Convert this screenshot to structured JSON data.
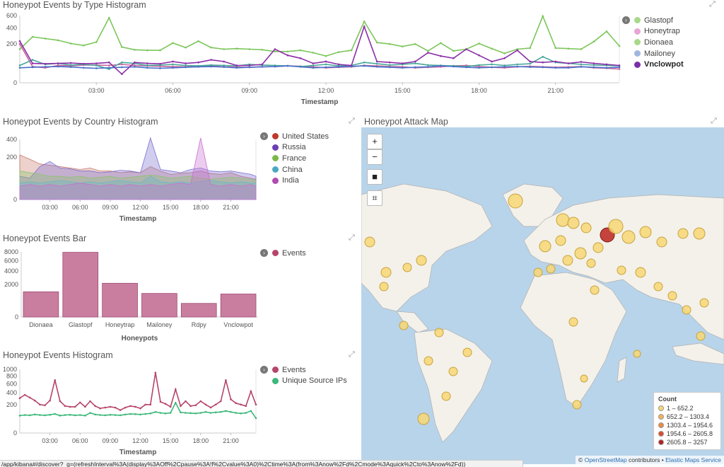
{
  "panels": {
    "type_hist": {
      "title": "Honeypot Events by Type Histogram",
      "legend": [
        {
          "label": "Glastopf",
          "color": "#a8d98a"
        },
        {
          "label": "Honeytrap",
          "color": "#e8a6d4"
        },
        {
          "label": "Dionaea",
          "color": "#a8d98a"
        },
        {
          "label": "Mailoney",
          "color": "#9fb6e0"
        },
        {
          "label": "Vnclowpot",
          "color": "#7b2fa8"
        }
      ]
    },
    "country_hist": {
      "title": "Honeypot Events by Country Histogram",
      "legend": [
        {
          "label": "United States",
          "color": "#c0392b"
        },
        {
          "label": "Russia",
          "color": "#6a3fb5"
        },
        {
          "label": "France",
          "color": "#7bb848"
        },
        {
          "label": "China",
          "color": "#4aa8c0"
        },
        {
          "label": "India",
          "color": "#b04bb0"
        }
      ]
    },
    "bar": {
      "title": "Honeypot Events Bar",
      "legend": [
        {
          "label": "Events",
          "color": "#b5456a"
        }
      ]
    },
    "events_hist": {
      "title": "Honeypot Events Histogram",
      "legend": [
        {
          "label": "Events",
          "color": "#b5456a"
        },
        {
          "label": "Unique Source IPs",
          "color": "#3cb87a"
        }
      ]
    },
    "map": {
      "title": "Honeypot Attack Map",
      "buttons": [
        "+",
        "−",
        "■",
        "⌗"
      ],
      "legend_title": "Count",
      "legend": [
        {
          "label": "1 – 652.2",
          "color": "#f7d774"
        },
        {
          "label": "652.2 – 1303.4",
          "color": "#f4b25a"
        },
        {
          "label": "1303.4 – 1954.6",
          "color": "#ef8a3c"
        },
        {
          "label": "1954.6 – 2605.8",
          "color": "#e04a2c"
        },
        {
          "label": "2605.8 – 3257",
          "color": "#b82020"
        }
      ],
      "attribution_prefix": "©",
      "attribution_osm": "OpenStreetMap",
      "attribution_mid": "contributors •",
      "attribution_ems": "Elastic Maps Service"
    }
  },
  "status_url": "/app/kibana#/discover?_g=(refreshInterval%3A(display%3AOff%2Cpause%3A!f%2Cvalue%3A0)%2Ctime%3A(from%3Anow%2Fd%2Cmode%3Aquick%2Cto%3Anow%2Fd))",
  "chart_data": [
    {
      "type": "line",
      "title": "Honeypot Events by Type Histogram",
      "xlabel": "Timestamp",
      "ylabel": "",
      "x_ticks": [
        "03:00",
        "06:00",
        "09:00",
        "12:00",
        "15:00",
        "18:00",
        "21:00"
      ],
      "y_ticks": [
        "0",
        "200",
        "400",
        "600"
      ],
      "y_scale": "sqrt",
      "xlim": [
        0,
        23.5
      ],
      "ylim": [
        0,
        600
      ],
      "x": [
        0,
        0.5,
        1,
        1.5,
        2,
        2.5,
        3,
        3.5,
        4,
        4.5,
        5,
        5.5,
        6,
        6.5,
        7,
        7.5,
        8,
        8.5,
        9,
        9.5,
        10,
        10.5,
        11,
        11.5,
        12,
        12.5,
        13,
        13.5,
        14,
        14.5,
        15,
        15.5,
        16,
        16.5,
        17,
        17.5,
        18,
        18.5,
        19,
        19.5,
        20,
        20.5,
        21,
        21.5,
        22,
        22.5,
        23,
        23.5
      ],
      "series": [
        {
          "name": "Glastopf",
          "values": [
            150,
            280,
            260,
            240,
            205,
            185,
            220,
            560,
            170,
            145,
            140,
            140,
            210,
            165,
            230,
            165,
            150,
            155,
            150,
            145,
            130,
            130,
            140,
            120,
            95,
            125,
            140,
            500,
            215,
            200,
            175,
            200,
            135,
            210,
            135,
            150,
            205,
            155,
            115,
            150,
            160,
            590,
            160,
            155,
            150,
            225,
            350,
            180
          ]
        },
        {
          "name": "Honeytrap",
          "values": [
            200,
            35,
            30,
            40,
            38,
            42,
            42,
            40,
            45,
            40,
            38,
            36,
            35,
            34,
            36,
            38,
            34,
            33,
            32,
            34,
            35,
            38,
            36,
            34,
            30,
            32,
            34,
            40,
            38,
            35,
            34,
            30,
            32,
            34,
            38,
            40,
            35,
            32,
            30,
            34,
            36,
            34,
            32,
            33,
            35,
            30,
            28,
            25
          ]
        },
        {
          "name": "Dionaea",
          "values": [
            40,
            70,
            45,
            50,
            42,
            45,
            40,
            25,
            55,
            50,
            40,
            42,
            45,
            40,
            38,
            42,
            40,
            38,
            45,
            42,
            40,
            38,
            35,
            40,
            45,
            38,
            40,
            55,
            48,
            42,
            45,
            50,
            42,
            40,
            38,
            35,
            42,
            45,
            40,
            45,
            48,
            90,
            55,
            50,
            45,
            42,
            40,
            38
          ]
        },
        {
          "name": "Mailoney",
          "values": [
            30,
            32,
            34,
            35,
            33,
            30,
            28,
            30,
            32,
            34,
            30,
            28,
            30,
            32,
            34,
            35,
            33,
            30,
            32,
            34,
            35,
            38,
            34,
            30,
            32,
            34,
            36,
            38,
            34,
            32,
            30,
            32,
            34,
            38,
            35,
            32,
            30,
            32,
            34,
            35,
            33,
            32,
            30,
            30,
            34,
            32,
            30,
            32
          ]
        },
        {
          "name": "Vnclowpot",
          "values": [
            230,
            50,
            48,
            50,
            52,
            48,
            50,
            55,
            10,
            55,
            50,
            48,
            60,
            50,
            55,
            70,
            60,
            40,
            40,
            45,
            150,
            100,
            80,
            50,
            60,
            45,
            40,
            420,
            60,
            55,
            50,
            60,
            120,
            95,
            80,
            150,
            100,
            60,
            80,
            140,
            60,
            55,
            60,
            50,
            58,
            50,
            45,
            40
          ]
        }
      ]
    },
    {
      "type": "area",
      "title": "Honeypot Events by Country Histogram",
      "xlabel": "Timestamp",
      "ylabel": "",
      "x_ticks": [
        "03:00",
        "06:00",
        "09:00",
        "12:00",
        "15:00",
        "18:00",
        "21:00"
      ],
      "y_ticks": [
        "0",
        "200",
        "400"
      ],
      "y_scale": "sqrt",
      "xlim": [
        0,
        23.5
      ],
      "ylim": [
        0,
        400
      ],
      "x": [
        0,
        1,
        2,
        3,
        4,
        5,
        6,
        7,
        8,
        9,
        10,
        11,
        12,
        13,
        14,
        15,
        16,
        17,
        18,
        19,
        20,
        21,
        22,
        23,
        23.5
      ],
      "series": [
        {
          "name": "United States",
          "values": [
            220,
            180,
            140,
            130,
            120,
            110,
            100,
            110,
            90,
            90,
            80,
            85,
            80,
            120,
            90,
            70,
            75,
            80,
            90,
            75,
            70,
            80,
            60,
            50,
            45
          ]
        },
        {
          "name": "Russia",
          "values": [
            60,
            50,
            120,
            160,
            110,
            105,
            90,
            90,
            80,
            85,
            95,
            90,
            80,
            420,
            100,
            90,
            80,
            100,
            110,
            90,
            85,
            90,
            80,
            70,
            60
          ]
        },
        {
          "name": "France",
          "values": [
            90,
            80,
            70,
            60,
            60,
            55,
            60,
            50,
            55,
            60,
            50,
            55,
            60,
            65,
            60,
            50,
            55,
            60,
            50,
            45,
            50,
            55,
            50,
            45,
            40
          ]
        },
        {
          "name": "China",
          "values": [
            30,
            35,
            30,
            35,
            40,
            35,
            30,
            35,
            30,
            35,
            40,
            35,
            30,
            60,
            35,
            30,
            35,
            30,
            35,
            40,
            35,
            30,
            35,
            30,
            30
          ]
        },
        {
          "name": "India",
          "values": [
            20,
            25,
            20,
            25,
            20,
            25,
            30,
            25,
            20,
            25,
            20,
            25,
            20,
            25,
            20,
            25,
            30,
            25,
            420,
            25,
            20,
            25,
            20,
            25,
            20
          ]
        }
      ]
    },
    {
      "type": "bar",
      "title": "Honeypot Events Bar",
      "xlabel": "Honeypots",
      "ylabel": "",
      "categories": [
        "Dionaea",
        "Glastopf",
        "Honeytrap",
        "Mailoney",
        "Rdpy",
        "Vnclowpot"
      ],
      "y_ticks": [
        "0",
        "2000",
        "4000",
        "6000",
        "8000"
      ],
      "y_scale": "sqrt",
      "ylim": [
        0,
        8000
      ],
      "series": [
        {
          "name": "Events",
          "values": [
            1200,
            7900,
            2150,
            1050,
            350,
            1000
          ]
        }
      ]
    },
    {
      "type": "line",
      "title": "Honeypot Events Histogram",
      "xlabel": "Timestamp",
      "ylabel": "",
      "x_ticks": [
        "03:00",
        "06:00",
        "09:00",
        "12:00",
        "15:00",
        "18:00",
        "21:00"
      ],
      "y_ticks": [
        "0",
        "200",
        "400",
        "600",
        "800",
        "1000"
      ],
      "y_scale": "sqrt",
      "xlim": [
        0,
        23.5
      ],
      "ylim": [
        0,
        1000
      ],
      "x": [
        0,
        0.5,
        1,
        1.5,
        2,
        2.5,
        3,
        3.5,
        4,
        4.5,
        5,
        5.5,
        6,
        6.5,
        7,
        7.5,
        8,
        8.5,
        9,
        9.5,
        10,
        10.5,
        11,
        11.5,
        12,
        12.5,
        13,
        13.5,
        14,
        14.5,
        15,
        15.5,
        16,
        16.5,
        17,
        17.5,
        18,
        18.5,
        19,
        19.5,
        20,
        20.5,
        21,
        21.5,
        22,
        22.5,
        23,
        23.5
      ],
      "series": [
        {
          "name": "Events",
          "values": [
            300,
            360,
            310,
            260,
            200,
            190,
            260,
            690,
            250,
            180,
            170,
            170,
            230,
            170,
            250,
            180,
            150,
            160,
            170,
            160,
            130,
            160,
            180,
            170,
            150,
            200,
            200,
            900,
            240,
            210,
            170,
            470,
            180,
            250,
            180,
            190,
            250,
            200,
            160,
            200,
            250,
            690,
            280,
            220,
            200,
            180,
            430,
            200
          ]
        },
        {
          "name": "Unique Source IPs",
          "values": [
            75,
            80,
            78,
            85,
            80,
            78,
            82,
            90,
            75,
            80,
            82,
            78,
            80,
            75,
            100,
            85,
            80,
            78,
            82,
            80,
            78,
            85,
            90,
            88,
            85,
            90,
            95,
            110,
            100,
            95,
            100,
            225,
            105,
            100,
            98,
            95,
            100,
            110,
            100,
            105,
            110,
            120,
            110,
            100,
            95,
            100,
            120,
            55
          ]
        }
      ]
    }
  ]
}
